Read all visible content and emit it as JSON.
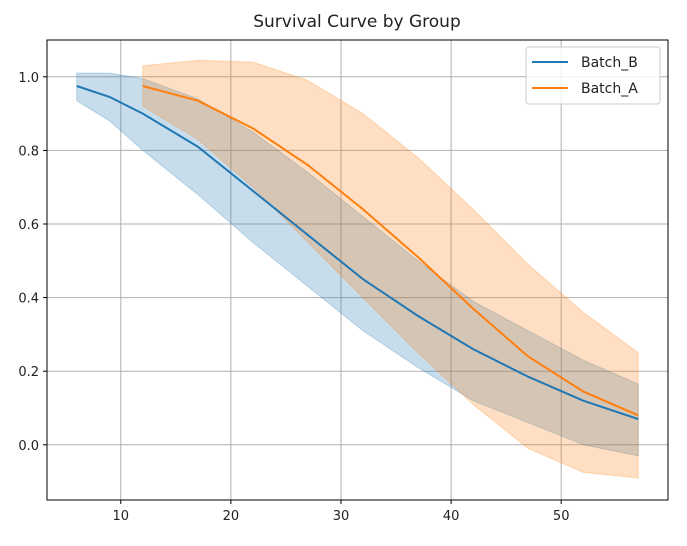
{
  "chart_data": {
    "type": "line",
    "title": "Survival Curve by Group",
    "xlabel": "",
    "ylabel": "",
    "xlim": [
      3.3,
      59.7
    ],
    "ylim": [
      -0.15,
      1.1
    ],
    "xticks": [
      10,
      20,
      30,
      40,
      50
    ],
    "yticks": [
      0.0,
      0.2,
      0.4,
      0.6,
      0.8,
      1.0
    ],
    "xtick_labels": [
      "10",
      "20",
      "30",
      "40",
      "50"
    ],
    "ytick_labels": [
      "0.0",
      "0.2",
      "0.4",
      "0.6",
      "0.8",
      "1.0"
    ],
    "grid": true,
    "legend_position": "top-right",
    "series": [
      {
        "name": "Batch_B",
        "color": "#1f77b4",
        "x": [
          6,
          9,
          12,
          17,
          22,
          27,
          32,
          37,
          42,
          47,
          52,
          57
        ],
        "y": [
          0.975,
          0.945,
          0.9,
          0.81,
          0.69,
          0.57,
          0.45,
          0.35,
          0.26,
          0.185,
          0.12,
          0.07
        ],
        "upper": [
          1.01,
          1.01,
          0.995,
          0.94,
          0.85,
          0.74,
          0.62,
          0.5,
          0.39,
          0.31,
          0.23,
          0.165
        ],
        "lower": [
          0.935,
          0.88,
          0.8,
          0.68,
          0.55,
          0.43,
          0.31,
          0.21,
          0.12,
          0.06,
          0.0,
          -0.03
        ]
      },
      {
        "name": "Batch_A",
        "color": "#ff7f0e",
        "x": [
          12,
          17,
          22,
          27,
          32,
          37,
          42,
          47,
          52,
          57
        ],
        "y": [
          0.975,
          0.935,
          0.86,
          0.76,
          0.64,
          0.51,
          0.37,
          0.24,
          0.145,
          0.08
        ],
        "upper": [
          1.03,
          1.045,
          1.04,
          0.99,
          0.9,
          0.78,
          0.64,
          0.49,
          0.36,
          0.25
        ],
        "lower": [
          0.92,
          0.83,
          0.7,
          0.55,
          0.4,
          0.25,
          0.11,
          -0.01,
          -0.075,
          -0.09
        ]
      }
    ]
  }
}
